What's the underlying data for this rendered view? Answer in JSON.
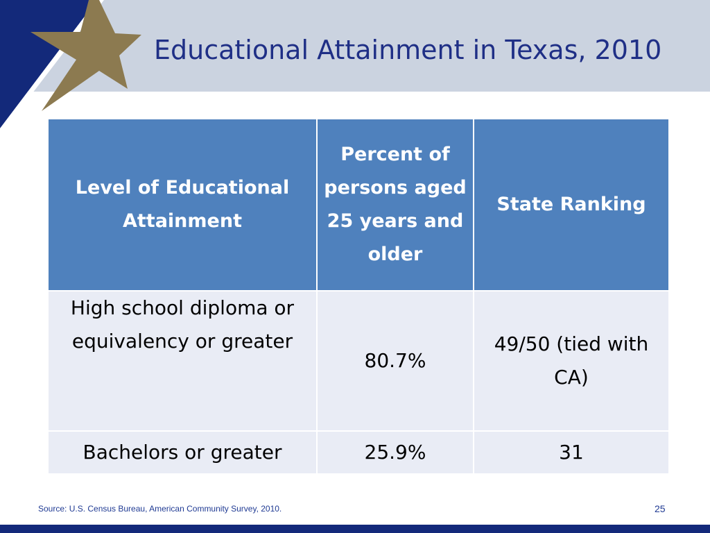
{
  "slide": {
    "title": "Educational Attainment in Texas, 2010",
    "page_number": "25",
    "source": "Source: U.S. Census Bureau, American Community Survey, 2010."
  },
  "table": {
    "headers": [
      "Level of Educational Attainment",
      "Percent of persons aged 25 years and older",
      "State Ranking"
    ],
    "rows": [
      [
        "High school diploma or equivalency  or greater",
        "80.7%",
        "49/50 (tied with CA)"
      ],
      [
        "Bachelors or greater",
        "25.9%",
        "31"
      ]
    ]
  },
  "colors": {
    "title_text": "#1f2f86",
    "title_band": "#cbd3e0",
    "header_fill": "#4f81bd",
    "row_fill": "#e9ecf5",
    "star_gold": "#8c7a50",
    "navy": "#13297a"
  },
  "icons": {
    "corner_logo": "star-icon"
  }
}
